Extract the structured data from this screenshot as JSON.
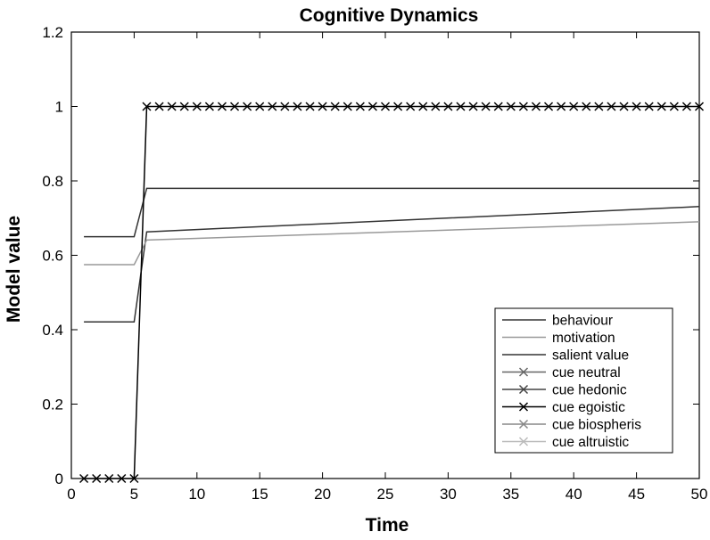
{
  "chart_data": {
    "type": "line",
    "title": "Cognitive Dynamics",
    "xlabel": "Time",
    "ylabel": "Model value",
    "xlim": [
      0,
      50
    ],
    "ylim": [
      0,
      1.2
    ],
    "xticks": [
      0,
      5,
      10,
      15,
      20,
      25,
      30,
      35,
      40,
      45,
      50
    ],
    "yticks": [
      0,
      0.2,
      0.4,
      0.6,
      0.8,
      1,
      1.2
    ],
    "grid": false,
    "legend_position": "bottom-right",
    "series": [
      {
        "name": "behaviour",
        "color": "#333333",
        "marker": "none",
        "x": [
          1,
          5,
          6,
          50
        ],
        "y": [
          0.421,
          0.421,
          0.663,
          0.731
        ]
      },
      {
        "name": "motivation",
        "color": "#999999",
        "marker": "none",
        "x": [
          1,
          5,
          6,
          50
        ],
        "y": [
          0.575,
          0.575,
          0.641,
          0.69
        ]
      },
      {
        "name": "salient value",
        "color": "#333333",
        "marker": "none",
        "x": [
          1,
          5,
          6,
          50
        ],
        "y": [
          0.65,
          0.65,
          0.78,
          0.78
        ]
      },
      {
        "name": "cue neutral",
        "color": "#666666",
        "marker": "x",
        "x": [],
        "y": []
      },
      {
        "name": "cue hedonic",
        "color": "#444444",
        "marker": "x",
        "x": [],
        "y": []
      },
      {
        "name": "cue egoistic",
        "color": "#000000",
        "marker": "x",
        "x": [
          1,
          2,
          3,
          4,
          5,
          6,
          7,
          8,
          9,
          10,
          11,
          12,
          13,
          14,
          15,
          16,
          17,
          18,
          19,
          20,
          21,
          22,
          23,
          24,
          25,
          26,
          27,
          28,
          29,
          30,
          31,
          32,
          33,
          34,
          35,
          36,
          37,
          38,
          39,
          40,
          41,
          42,
          43,
          44,
          45,
          46,
          47,
          48,
          49,
          50
        ],
        "y": [
          0,
          0,
          0,
          0,
          0,
          1,
          1,
          1,
          1,
          1,
          1,
          1,
          1,
          1,
          1,
          1,
          1,
          1,
          1,
          1,
          1,
          1,
          1,
          1,
          1,
          1,
          1,
          1,
          1,
          1,
          1,
          1,
          1,
          1,
          1,
          1,
          1,
          1,
          1,
          1,
          1,
          1,
          1,
          1,
          1,
          1,
          1,
          1,
          1,
          1
        ]
      },
      {
        "name": "cue biospheris",
        "color": "#888888",
        "marker": "x",
        "x": [],
        "y": []
      },
      {
        "name": "cue altruistic",
        "color": "#bbbbbb",
        "marker": "x",
        "x": [],
        "y": []
      }
    ]
  }
}
